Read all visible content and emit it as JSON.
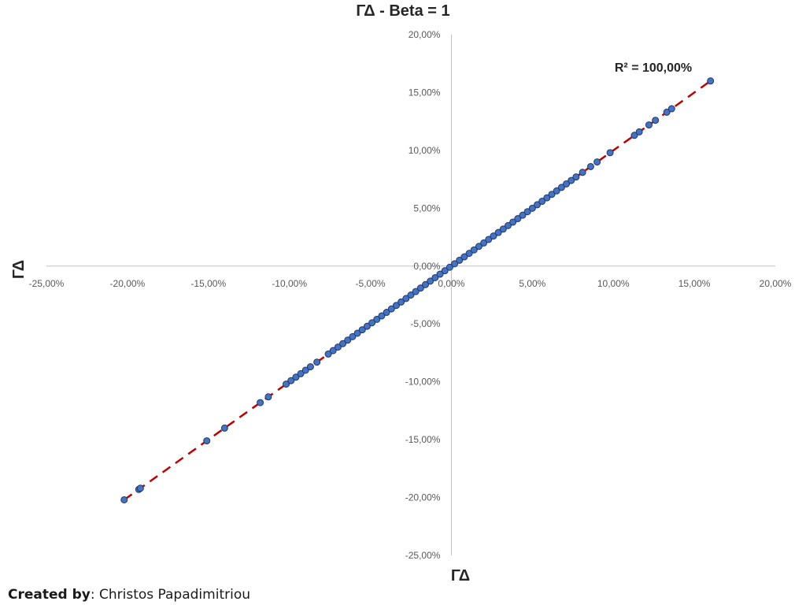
{
  "chart_data": {
    "type": "scatter",
    "title": "ΓΔ - Beta = 1",
    "xlabel": "ΓΔ",
    "ylabel": "ΓΔ",
    "xlim": [
      -25,
      20
    ],
    "ylim": [
      -25,
      20
    ],
    "x_ticks": [
      "-25,00%",
      "-20,00%",
      "-15,00%",
      "-10,00%",
      "-5,00%",
      "0,00%",
      "5,00%",
      "10,00%",
      "15,00%",
      "20,00%"
    ],
    "y_ticks": [
      "20,00%",
      "15,00%",
      "10,00%",
      "5,00%",
      "0,00%",
      "-5,00%",
      "-10,00%",
      "-15,00%",
      "-20,00%",
      "-25,00%"
    ],
    "x_tick_values": [
      -25,
      -20,
      -15,
      -10,
      -5,
      0,
      5,
      10,
      15,
      20
    ],
    "y_tick_values": [
      20,
      15,
      10,
      5,
      0,
      -5,
      -10,
      -15,
      -20,
      -25
    ],
    "grid": false,
    "trendline": {
      "type": "linear",
      "style": "dashed",
      "color": "#c00000",
      "x_range": [
        -20.2,
        16.0
      ]
    },
    "r_squared_label": "R² = 100,00%",
    "marker_color": "#4472c4",
    "marker_edge": "#1f3864",
    "points": [
      [
        -20.2,
        -20.2
      ],
      [
        -19.3,
        -19.3
      ],
      [
        -19.2,
        -19.2
      ],
      [
        -15.1,
        -15.1
      ],
      [
        -14.0,
        -14.0
      ],
      [
        -11.8,
        -11.8
      ],
      [
        -11.3,
        -11.3
      ],
      [
        -10.2,
        -10.2
      ],
      [
        -9.9,
        -9.9
      ],
      [
        -9.6,
        -9.6
      ],
      [
        -9.3,
        -9.3
      ],
      [
        -9.0,
        -9.0
      ],
      [
        -8.7,
        -8.7
      ],
      [
        -8.3,
        -8.3
      ],
      [
        -7.6,
        -7.6
      ],
      [
        -7.3,
        -7.3
      ],
      [
        -7.0,
        -7.0
      ],
      [
        -6.7,
        -6.7
      ],
      [
        -6.4,
        -6.4
      ],
      [
        -6.1,
        -6.1
      ],
      [
        -5.8,
        -5.8
      ],
      [
        -5.5,
        -5.5
      ],
      [
        -5.2,
        -5.2
      ],
      [
        -4.9,
        -4.9
      ],
      [
        -4.6,
        -4.6
      ],
      [
        -4.3,
        -4.3
      ],
      [
        -4.0,
        -4.0
      ],
      [
        -3.7,
        -3.7
      ],
      [
        -3.4,
        -3.4
      ],
      [
        -3.1,
        -3.1
      ],
      [
        -2.8,
        -2.8
      ],
      [
        -2.5,
        -2.5
      ],
      [
        -2.2,
        -2.2
      ],
      [
        -1.9,
        -1.9
      ],
      [
        -1.6,
        -1.6
      ],
      [
        -1.3,
        -1.3
      ],
      [
        -1.0,
        -1.0
      ],
      [
        -0.7,
        -0.7
      ],
      [
        -0.4,
        -0.4
      ],
      [
        -0.1,
        -0.1
      ],
      [
        0.2,
        0.2
      ],
      [
        0.5,
        0.5
      ],
      [
        0.8,
        0.8
      ],
      [
        1.1,
        1.1
      ],
      [
        1.4,
        1.4
      ],
      [
        1.7,
        1.7
      ],
      [
        2.0,
        2.0
      ],
      [
        2.3,
        2.3
      ],
      [
        2.6,
        2.6
      ],
      [
        2.9,
        2.9
      ],
      [
        3.2,
        3.2
      ],
      [
        3.5,
        3.5
      ],
      [
        3.8,
        3.8
      ],
      [
        4.1,
        4.1
      ],
      [
        4.4,
        4.4
      ],
      [
        4.7,
        4.7
      ],
      [
        5.0,
        5.0
      ],
      [
        5.3,
        5.3
      ],
      [
        5.6,
        5.6
      ],
      [
        5.9,
        5.9
      ],
      [
        6.2,
        6.2
      ],
      [
        6.5,
        6.5
      ],
      [
        6.8,
        6.8
      ],
      [
        7.1,
        7.1
      ],
      [
        7.4,
        7.4
      ],
      [
        7.7,
        7.7
      ],
      [
        8.1,
        8.1
      ],
      [
        8.6,
        8.6
      ],
      [
        9.0,
        9.0
      ],
      [
        9.8,
        9.8
      ],
      [
        11.3,
        11.3
      ],
      [
        11.6,
        11.6
      ],
      [
        12.2,
        12.2
      ],
      [
        12.6,
        12.6
      ],
      [
        13.3,
        13.3
      ],
      [
        13.6,
        13.6
      ],
      [
        16.0,
        16.0
      ]
    ]
  },
  "footer": {
    "credit_label": "Created by",
    "credit_name": ": Christos Papadimitriou"
  }
}
